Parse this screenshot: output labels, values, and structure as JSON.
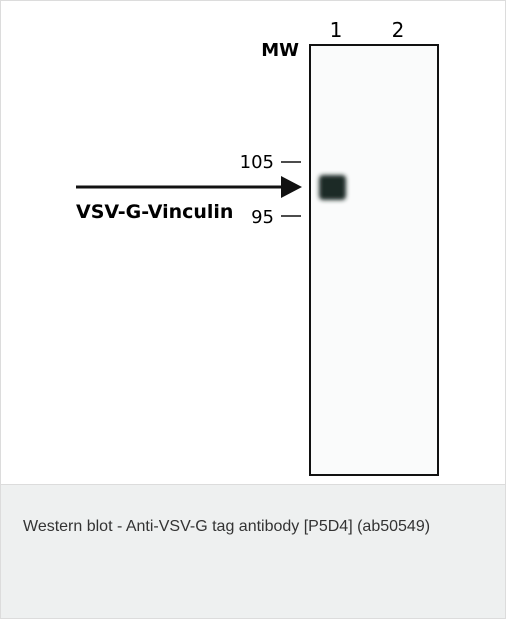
{
  "figure": {
    "lanes": [
      "1",
      "2"
    ],
    "mw_label": "MW",
    "markers": [
      "105",
      "95"
    ],
    "target_label": "VSV-G-Vinculin"
  },
  "caption": "Western blot - Anti-VSV-G tag antibody [P5D4] (ab50549)"
}
